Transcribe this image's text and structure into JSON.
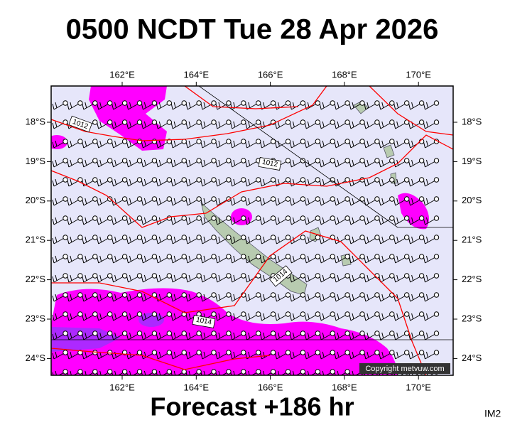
{
  "header": {
    "title": "0500 NCDT Tue 28 Apr 2026"
  },
  "map": {
    "longitude_labels": [
      "162°E",
      "164°E",
      "166°E",
      "168°E",
      "170°E"
    ],
    "latitude_labels": [
      "18°S",
      "19°S",
      "20°S",
      "21°S",
      "22°S",
      "23°S",
      "24°S"
    ],
    "isobar_labels": [
      "1012",
      "1012",
      "1014",
      "1014"
    ],
    "copyright": "Copyright metvuw.com"
  },
  "footer": {
    "forecast": "Forecast +186 hr",
    "image_id": "IM2"
  }
}
